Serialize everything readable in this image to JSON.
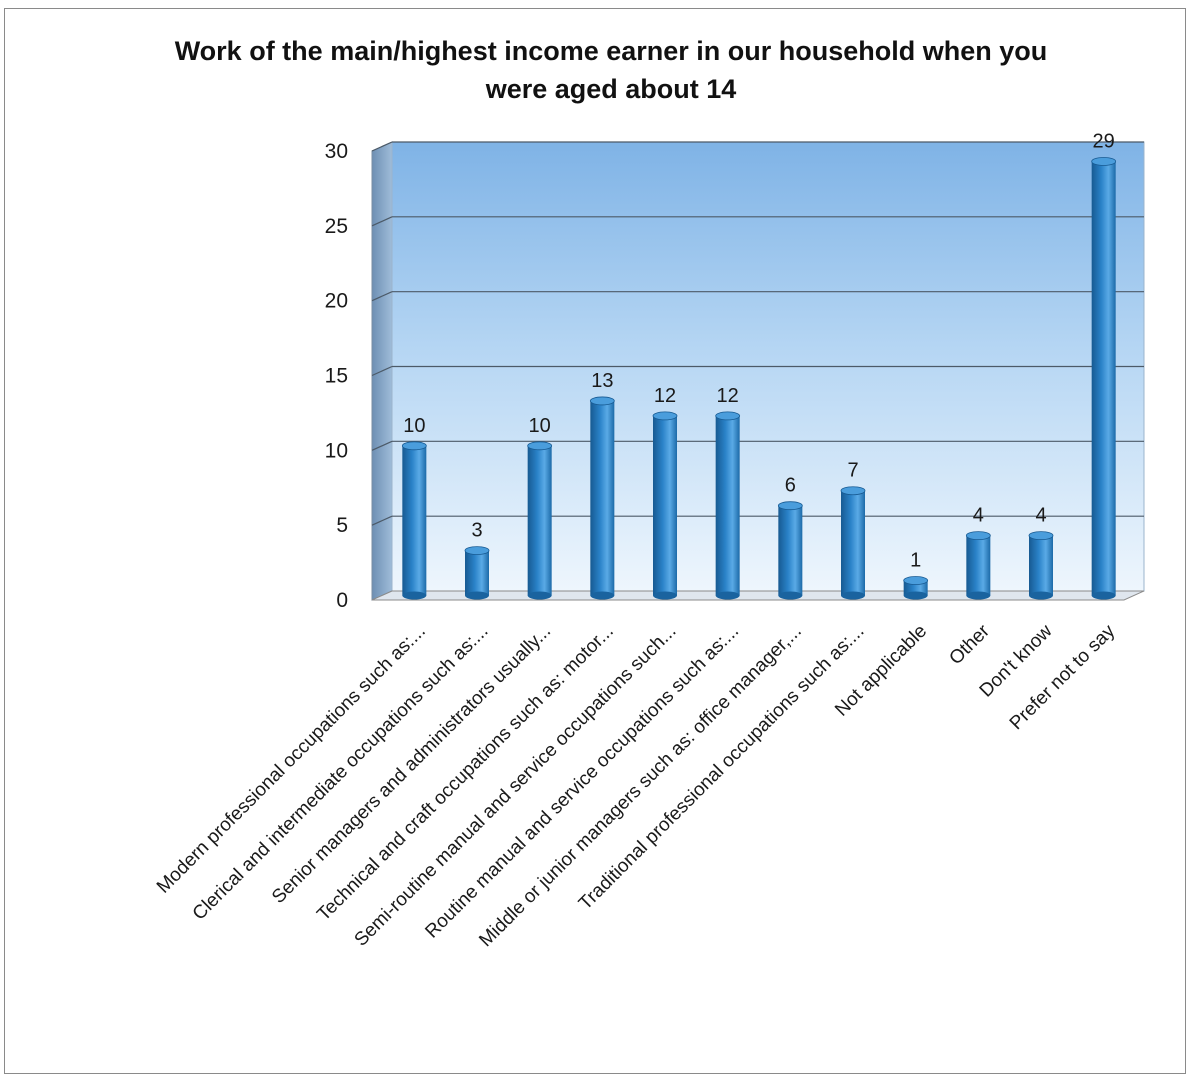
{
  "chart_data": {
    "type": "bar",
    "title_lines": [
      "Work of the main/highest income earner in our household when you",
      "were aged about 14"
    ],
    "categories": [
      "Modern professional occupations such as:...",
      "Clerical and intermediate occupations such as:...",
      "Senior managers and administrators usually...",
      "Technical and craft occupations such as: motor...",
      "Semi-routine manual and service occupations such...",
      "Routine manual and service occupations such as:...",
      "Middle or junior managers such as: office manager,...",
      "Traditional professional occupations such as:...",
      "Not applicable",
      "Other",
      "Don't know",
      "Prefer not to say"
    ],
    "values": [
      10,
      3,
      10,
      13,
      12,
      12,
      6,
      7,
      1,
      4,
      4,
      29
    ],
    "data_labels": [
      "10",
      "3",
      "10",
      "13",
      "12",
      "12",
      "6",
      "7",
      "1",
      "4",
      "4",
      "29"
    ],
    "ylim": [
      0,
      30
    ],
    "yticks": [
      "0",
      "5",
      "10",
      "15",
      "20",
      "25",
      "30"
    ],
    "xlabel": "",
    "ylabel": "",
    "grid": true,
    "legend": "none",
    "colors": {
      "bar": "#2a7fc4",
      "bar_dark": "#175a92",
      "bar_light": "#6fb6ec",
      "wall_top": "#7fb3e6",
      "wall_bottom": "#eaf4fc",
      "gridline": "#4a4a4a"
    }
  }
}
